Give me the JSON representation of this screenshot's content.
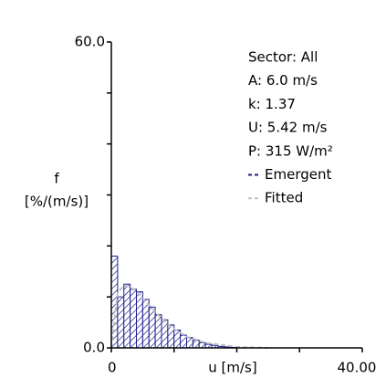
{
  "chart_data": {
    "type": "histogram",
    "ylabel": [
      "f",
      "[%/(m/s)]"
    ],
    "xlabel": "u [m/s]",
    "bins": [
      0,
      1,
      2,
      3,
      4,
      5,
      6,
      7,
      8,
      9,
      10,
      11,
      12,
      13,
      14,
      15,
      16,
      17,
      18,
      19,
      20
    ],
    "series": [
      {
        "name": "Emergent",
        "color": "#1c1f8f",
        "values": [
          18,
          10,
          12.5,
          11.5,
          11,
          9.5,
          8,
          6.5,
          5.5,
          4.5,
          3.5,
          2.5,
          2,
          1.5,
          1,
          0.7,
          0.5,
          0.3,
          0.2,
          0.1
        ]
      },
      {
        "name": "Fitted",
        "color": "#c0c0c0",
        "type": "line",
        "x": [
          0,
          1,
          2,
          3,
          4,
          6,
          8,
          10,
          12,
          15,
          20,
          25
        ],
        "values": [
          0,
          10.8,
          12.2,
          12.0,
          11.1,
          8.4,
          5.8,
          3.7,
          2.2,
          1.0,
          0.2,
          0.0
        ]
      }
    ],
    "annotations": [
      {
        "text": "Sector: All",
        "color": "#000000"
      },
      {
        "text": "A: 6.0 m/s",
        "color": "#b4b4b4"
      },
      {
        "text": "k: 1.37",
        "color": "#b4b4b4"
      },
      {
        "text": "U: 5.42 m/s",
        "color": "#000000"
      },
      {
        "text": "P: 315 W/m²",
        "color": "#000000"
      }
    ],
    "xlim": [
      0,
      40
    ],
    "xticks": [
      0,
      {
        "value": 40,
        "label": "40.00"
      }
    ],
    "xminorticks": [
      10,
      20,
      30
    ],
    "ylim": [
      0,
      60
    ],
    "yticks": [
      {
        "value": 0,
        "label": "0.0"
      },
      {
        "value": 60,
        "label": "60.0"
      }
    ],
    "yminorticks": [
      10,
      20,
      30,
      40,
      50
    ]
  }
}
